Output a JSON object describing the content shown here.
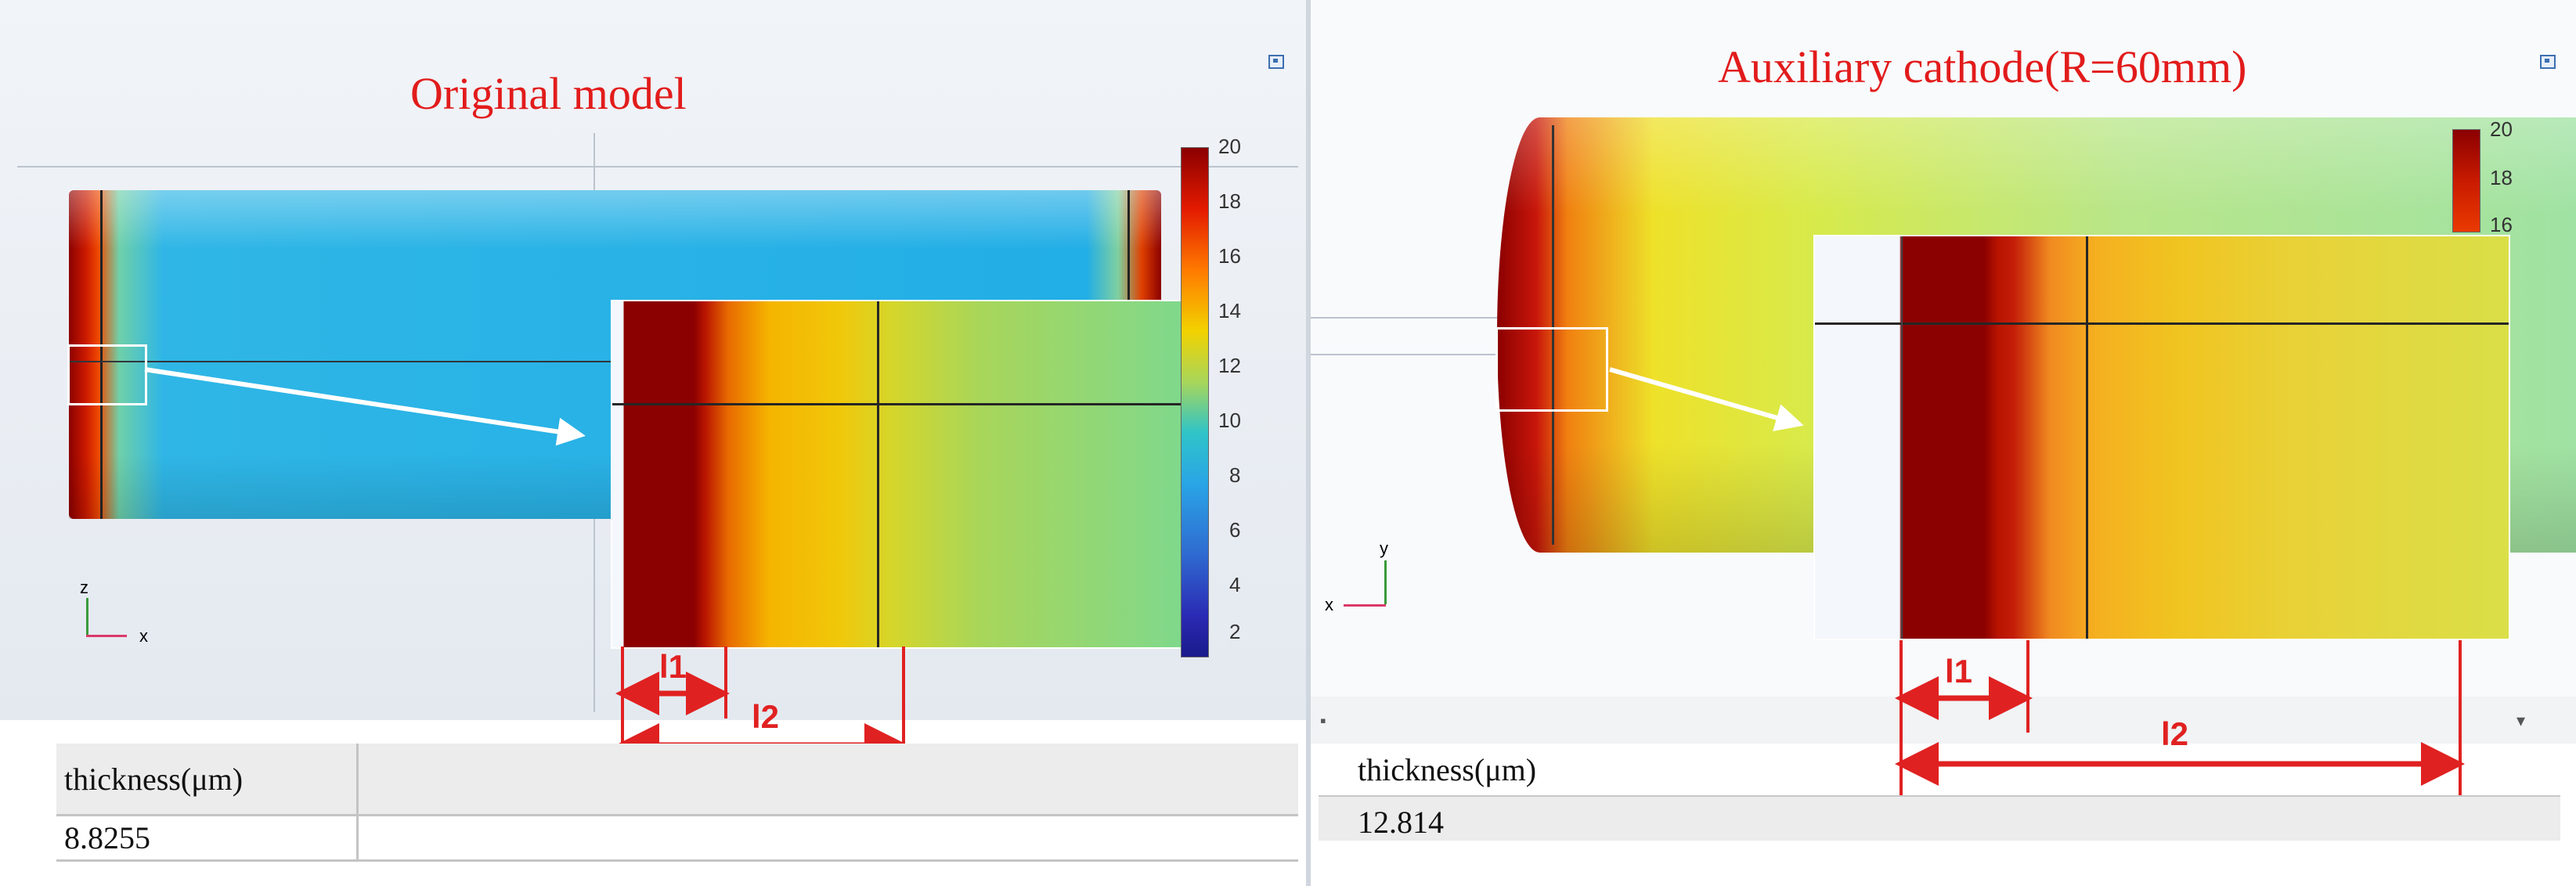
{
  "left_panel": {
    "title": "Original model",
    "colorbar": {
      "ticks": [
        "20",
        "18",
        "16",
        "14",
        "12",
        "10",
        "8",
        "6",
        "4",
        "2"
      ]
    },
    "triad": {
      "vertical_axis": "z",
      "horizontal_axis": "x"
    },
    "dimension_labels": {
      "l1": "l1",
      "l2": "l2"
    },
    "table": {
      "header": "thickness(μm)",
      "value": "8.8255"
    }
  },
  "right_panel": {
    "title": "Auxiliary cathode(R=60mm)",
    "colorbar": {
      "ticks": [
        "20",
        "18",
        "16"
      ]
    },
    "triad": {
      "vertical_axis": "y",
      "horizontal_axis": "x"
    },
    "dimension_labels": {
      "l1": "l1",
      "l2": "l2"
    },
    "table": {
      "header": "thickness(μm)",
      "value": "12.814"
    }
  },
  "colors": {
    "annotation_red": "#e21b1b",
    "max_thickness": "#8b0000",
    "min_thickness": "#1a1a8c"
  }
}
